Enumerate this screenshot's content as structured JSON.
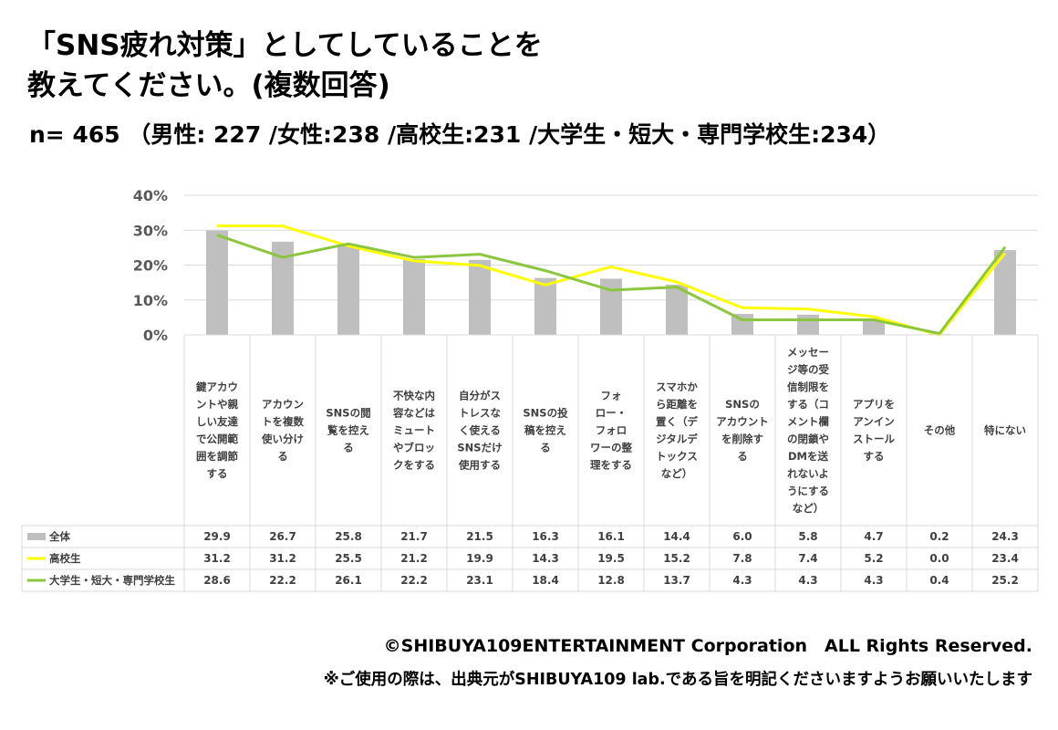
{
  "title": "「SNS疲れ対策」としてしていることを\n教えてください。(複数回答)",
  "subtitle": "n= 465 （男性: 227 /女性:238 /高校生:231 /大学生・短大・専門学校生:234）",
  "chart_data": {
    "type": "bar",
    "ylim": [
      0,
      40
    ],
    "yticks": [
      "0%",
      "10%",
      "20%",
      "30%",
      "40%"
    ],
    "grid": true,
    "categories": [
      "鍵アカウントや親しい友達で公開範囲を調節する",
      "アカウントを複数使い分ける",
      "SNSの閲覧を控える",
      "不快な内容などはミュートやブロックをする",
      "自分がストレスなく使えるSNSだけ使用する",
      "SNSの投稿を控える",
      "フォロー・フォロワーの整理をする",
      "スマホから距離を置く（デジタルデトックスなど）",
      "SNSのアカウントを削除する",
      "メッセージ等の受信制限をする（コメント欄の閉鎖やDMを送れないようにするなど）",
      "アプリをアンインストールする",
      "その他",
      "特にない"
    ],
    "category_lines": [
      [
        "鍵アカウ",
        "ントや親",
        "しい友達",
        "で公開範",
        "囲を調節",
        "する"
      ],
      [
        "アカウン",
        "トを複数",
        "使い分け",
        "る"
      ],
      [
        "SNSの閲",
        "覧を控え",
        "る"
      ],
      [
        "不快な内",
        "容などは",
        "ミュート",
        "やブロッ",
        "クをする"
      ],
      [
        "自分がス",
        "トレスな",
        "く使える",
        "SNSだけ",
        "使用する"
      ],
      [
        "SNSの投",
        "稿を控え",
        "る"
      ],
      [
        "フォ",
        "ロー・",
        "フォロ",
        "ワーの整",
        "理をする"
      ],
      [
        "スマホか",
        "ら距離を",
        "置く（デ",
        "ジタルデ",
        "トックス",
        "など）"
      ],
      [
        "SNSの",
        "アカウント",
        "を削除す",
        "る"
      ],
      [
        "メッセー",
        "ジ等の受",
        "信制限を",
        "する（コ",
        "メント欄",
        "の閉鎖や",
        "DMを送",
        "れないよ",
        "うにする",
        "など）"
      ],
      [
        "アプリを",
        "アンイン",
        "ストール",
        "する"
      ],
      [
        "その他"
      ],
      [
        "特にない"
      ]
    ],
    "series": [
      {
        "name": "全体",
        "type": "bar",
        "color": "#bfbfbf",
        "values": [
          29.9,
          26.7,
          25.8,
          21.7,
          21.5,
          16.3,
          16.1,
          14.4,
          6.0,
          5.8,
          4.7,
          0.2,
          24.3
        ],
        "labels": [
          "29.9",
          "26.7",
          "25.8",
          "21.7",
          "21.5",
          "16.3",
          "16.1",
          "14.4",
          "6.0",
          "5.8",
          "4.7",
          "0.2",
          "24.3"
        ]
      },
      {
        "name": "高校生",
        "type": "line",
        "color": "#ffff00",
        "values": [
          31.2,
          31.2,
          25.5,
          21.2,
          19.9,
          14.3,
          19.5,
          15.2,
          7.8,
          7.4,
          5.2,
          0.0,
          23.4
        ],
        "labels": [
          "31.2",
          "31.2",
          "25.5",
          "21.2",
          "19.9",
          "14.3",
          "19.5",
          "15.2",
          "7.8",
          "7.4",
          "5.2",
          "0.0",
          "23.4"
        ]
      },
      {
        "name": "大学生・短大・専門学校生",
        "type": "line",
        "color": "#8cc63f",
        "values": [
          28.6,
          22.2,
          26.1,
          22.2,
          23.1,
          18.4,
          12.8,
          13.7,
          4.3,
          4.3,
          4.3,
          0.4,
          25.2
        ],
        "labels": [
          "28.6",
          "22.2",
          "26.1",
          "22.2",
          "23.1",
          "18.4",
          "12.8",
          "13.7",
          "4.3",
          "4.3",
          "4.3",
          "0.4",
          "25.2"
        ]
      }
    ]
  },
  "footer": {
    "copyright": "©SHIBUYA109ENTERTAINMENT Corporation　ALL Rights Reserved.",
    "note": "※ご使用の際は、出典元がSHIBUYA109 lab.である旨を明記くださいますようお願いいたします"
  }
}
